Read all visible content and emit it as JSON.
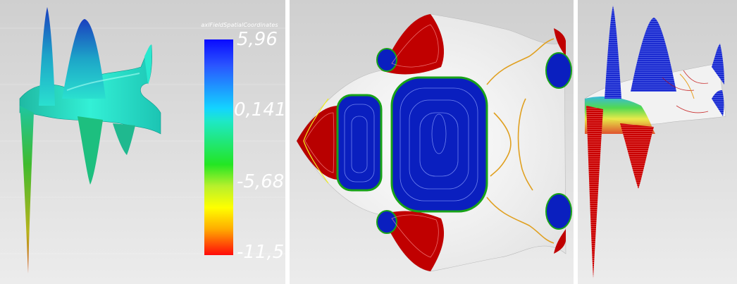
{
  "legend": {
    "title": "axlFieldSpatialCoordinates",
    "labels": {
      "max": "5,96",
      "mid_high": "0,141",
      "mid_low": "-5,68",
      "min": "-11,5"
    },
    "colors": [
      "#0a0aff",
      "#13d4ff",
      "#23e623",
      "#ffff00",
      "#ff0a0a"
    ]
  },
  "panels": [
    {
      "name": "surface-colormap",
      "style": "smooth shaded surface"
    },
    {
      "name": "contour-top-view",
      "style": "isolines top view"
    },
    {
      "name": "contour-perspective",
      "style": "isolines perspective"
    }
  ],
  "colors": {
    "background_top": "#d0d0d0",
    "background_bottom": "#ebebeb",
    "surface": "#1ee6c8"
  }
}
